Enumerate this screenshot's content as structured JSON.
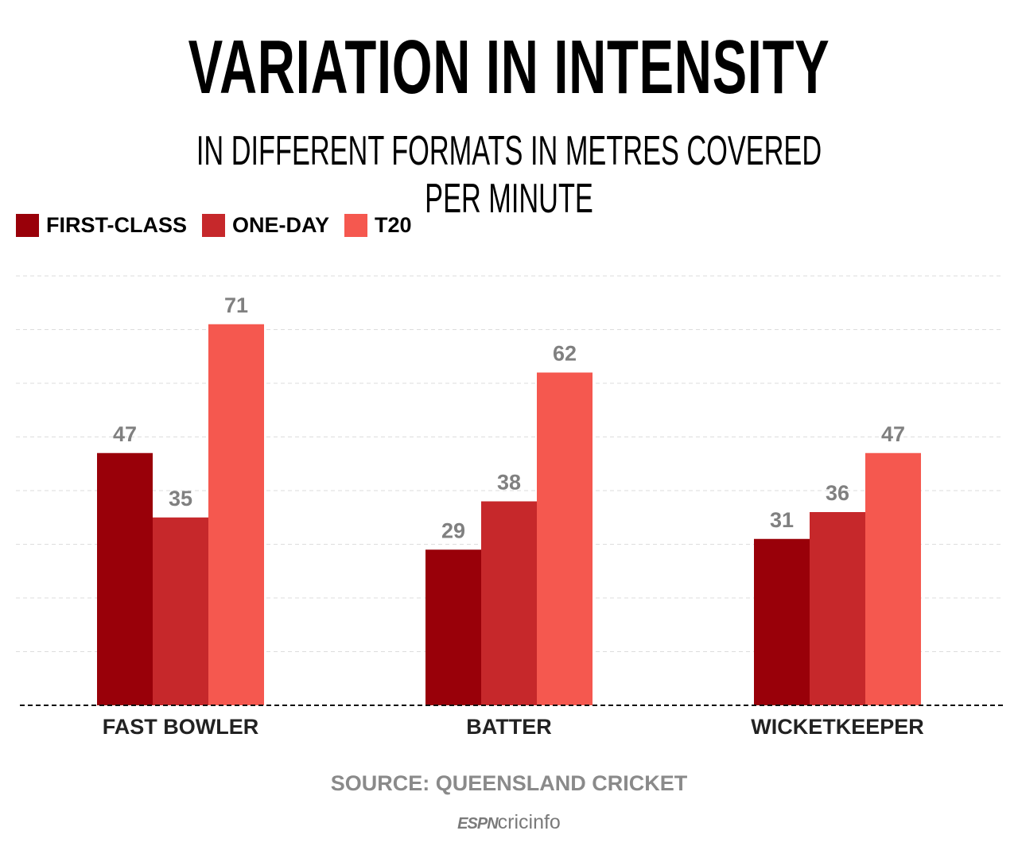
{
  "chart_data": {
    "type": "bar",
    "title": "VARIATION IN INTENSITY",
    "subtitle": "IN DIFFERENT FORMATS IN METRES COVERED PER MINUTE",
    "categories": [
      "FAST BOWLER",
      "BATTER",
      "WICKETKEEPER"
    ],
    "series": [
      {
        "name": "FIRST-CLASS",
        "color": "#990009",
        "values": [
          47,
          29,
          31
        ]
      },
      {
        "name": "ONE-DAY",
        "color": "#c6282b",
        "values": [
          35,
          38,
          36
        ]
      },
      {
        "name": "T20",
        "color": "#f5584f",
        "values": [
          71,
          62,
          47
        ]
      }
    ],
    "ylim": [
      0,
      80
    ],
    "grid": true,
    "legend_position": "top-left",
    "data_labels": true,
    "xlabel": "",
    "ylabel": ""
  },
  "source": "SOURCE: QUEENSLAND CRICKET",
  "logo": {
    "espn": "ESPN",
    "cricinfo": "cricinfo"
  }
}
